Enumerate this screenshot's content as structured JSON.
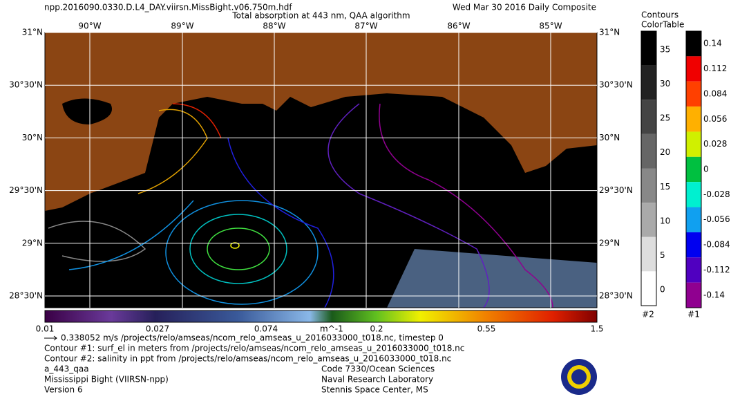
{
  "header": {
    "filename": "npp.2016090.0330.D.L4_DAY.viirsn.MissBight.v06.750m.hdf",
    "date": "Wed Mar 30 2016 Daily Composite",
    "subtitle": "Total absorption at 443 nm, QAA algorithm"
  },
  "map": {
    "lon_labels": [
      "90°W",
      "89°W",
      "88°W",
      "87°W",
      "86°W",
      "85°W"
    ],
    "lat_labels": [
      "31°N",
      "30°30'N",
      "30°N",
      "29°30'N",
      "29°N",
      "28°30'N"
    ]
  },
  "colorbar": {
    "labels": [
      "0.01",
      "0.027",
      "0.074",
      "0.2",
      "0.55",
      "1.5"
    ],
    "unit": "m^-1"
  },
  "legend": {
    "title": [
      "Contours",
      "ColorTable"
    ],
    "bar2": {
      "labels": [
        "35",
        "30",
        "25",
        "20",
        "15",
        "10",
        "5",
        "0"
      ],
      "tag": "#2"
    },
    "bar1": {
      "labels": [
        "0.14",
        "0.112",
        "0.084",
        "0.056",
        "0.028",
        "0",
        "-0.028",
        "-0.056",
        "-0.084",
        "-0.112",
        "-0.14"
      ],
      "tag": "#1"
    }
  },
  "footer": {
    "left": [
      "0.338052 m/s /projects/relo/amseas/ncom_relo_amseas_u_2016033000_t018.nc, timestep 0",
      "Contour #1: surf_el in meters from /projects/relo/amseas/ncom_relo_amseas_u_2016033000_t018.nc",
      "Contour #2: salinity in ppt from /projects/relo/amseas/ncom_relo_amseas_u_2016033000_t018.nc",
      "a_443_qaa",
      "Mississippi Bight (VIIRSN-npp)",
      "Version 6"
    ],
    "right": [
      "Code 7330/Ocean Sciences",
      "Naval Research Laboratory",
      "Stennis Space Center, MS"
    ]
  }
}
